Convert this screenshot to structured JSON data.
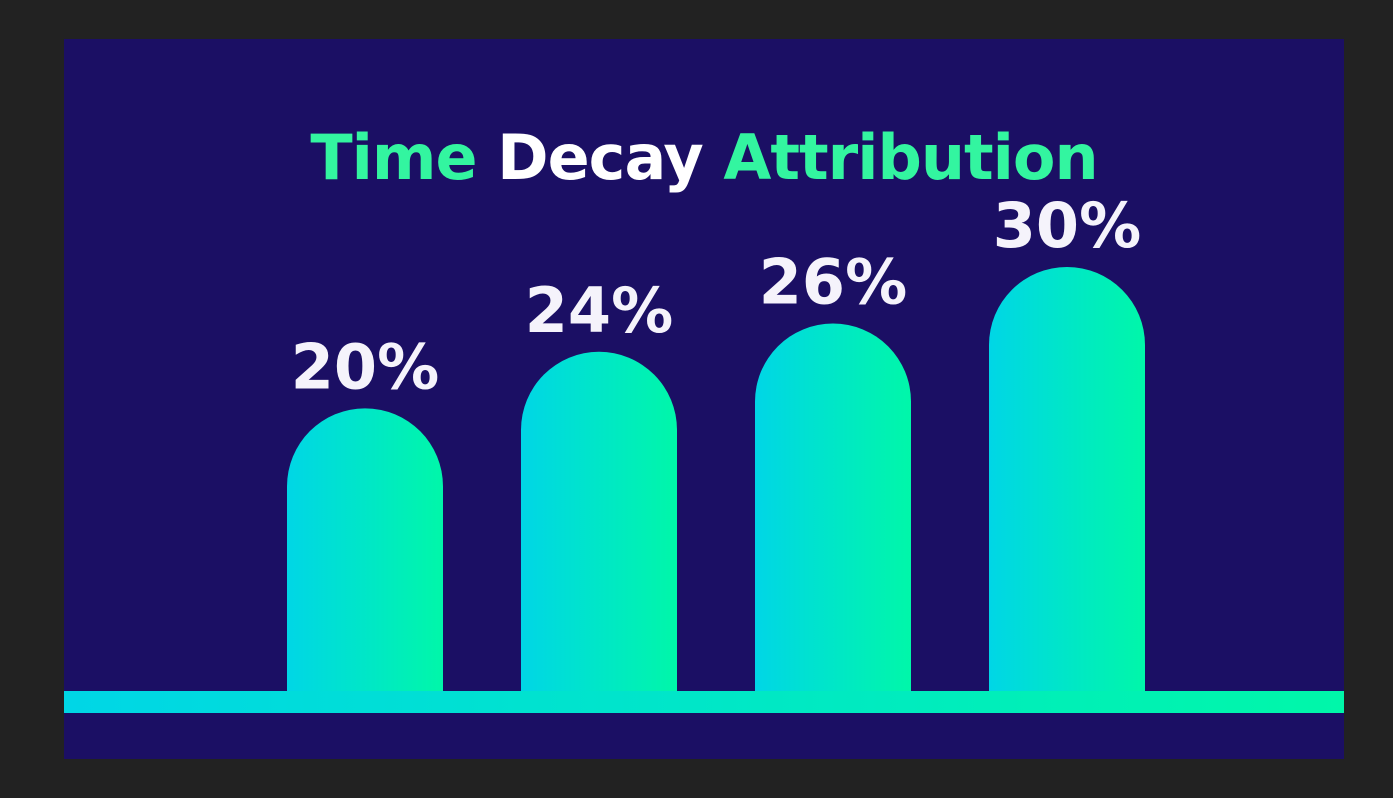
{
  "chart_data": {
    "type": "bar",
    "title_parts": [
      "Time",
      "Decay",
      "Attribution"
    ],
    "values": [
      20,
      24,
      26,
      30
    ],
    "labels": [
      "20%",
      "24%",
      "26%",
      "30%"
    ],
    "ylim": [
      0,
      30
    ],
    "grid": false,
    "legend": "none",
    "colors": {
      "background": "#1b0f64",
      "frame": "#222222",
      "gradient_start": "#00d6e6",
      "gradient_end": "#00f7a9",
      "title_accent": "#33f5a0",
      "title_main": "#ffffff",
      "label": "#f5f3fb"
    }
  }
}
